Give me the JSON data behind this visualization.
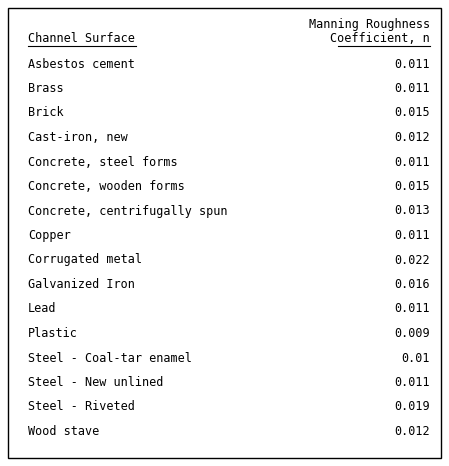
{
  "title_line1": "Manning Roughness",
  "title_line2": "Coefficient, n",
  "col1_header": "Channel Surface",
  "rows": [
    [
      "Asbestos cement",
      "0.011"
    ],
    [
      "Brass",
      "0.011"
    ],
    [
      "Brick",
      "0.015"
    ],
    [
      "Cast-iron, new",
      "0.012"
    ],
    [
      "Concrete, steel forms",
      "0.011"
    ],
    [
      "Concrete, wooden forms",
      "0.015"
    ],
    [
      "Concrete, centrifugally spun",
      "0.013"
    ],
    [
      "Copper",
      "0.011"
    ],
    [
      "Corrugated metal",
      "0.022"
    ],
    [
      "Galvanized Iron",
      "0.016"
    ],
    [
      "Lead",
      "0.011"
    ],
    [
      "Plastic",
      "0.009"
    ],
    [
      "Steel - Coal-tar enamel",
      "0.01"
    ],
    [
      "Steel - New unlined",
      "0.011"
    ],
    [
      "Steel - Riveted",
      "0.019"
    ],
    [
      "Wood stave",
      "0.012"
    ]
  ],
  "bg_color": "#ffffff",
  "border_color": "#000000",
  "text_color": "#000000",
  "font_size": 8.5,
  "header_font_size": 8.5
}
